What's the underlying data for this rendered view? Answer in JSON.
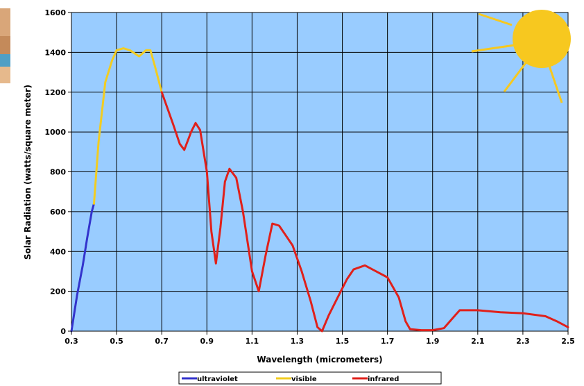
{
  "chart_data": {
    "type": "line",
    "title": "",
    "xlabel": "Wavelength (micrometers)",
    "ylabel": "Solar Radiation (watts/square meter)",
    "xlim": [
      0.3,
      2.5
    ],
    "ylim": [
      0,
      1600
    ],
    "x_ticks": [
      "0.3",
      "0.5",
      "0.7",
      "0.9",
      "1.1",
      "1.3",
      "1.5",
      "1.7",
      "1.9",
      "2.1",
      "2.3",
      "2.5"
    ],
    "y_ticks": [
      "0",
      "200",
      "400",
      "600",
      "800",
      "1000",
      "1200",
      "1400",
      "1600"
    ],
    "grid": true,
    "legend_position": "bottom-center",
    "plot_background": "#99ccff",
    "series": [
      {
        "name": "ultraviolet",
        "color": "#3333cc",
        "points": [
          [
            0.3,
            0
          ],
          [
            0.325,
            180
          ],
          [
            0.35,
            330
          ],
          [
            0.37,
            470
          ],
          [
            0.39,
            600
          ],
          [
            0.4,
            640
          ]
        ]
      },
      {
        "name": "visible",
        "color": "#f2cc21",
        "points": [
          [
            0.4,
            640
          ],
          [
            0.42,
            950
          ],
          [
            0.45,
            1250
          ],
          [
            0.48,
            1360
          ],
          [
            0.5,
            1410
          ],
          [
            0.53,
            1420
          ],
          [
            0.56,
            1410
          ],
          [
            0.6,
            1380
          ],
          [
            0.63,
            1410
          ],
          [
            0.65,
            1410
          ],
          [
            0.67,
            1330
          ],
          [
            0.7,
            1200
          ]
        ]
      },
      {
        "name": "infrared",
        "color": "#e0201b",
        "points": [
          [
            0.7,
            1200
          ],
          [
            0.75,
            1040
          ],
          [
            0.78,
            940
          ],
          [
            0.8,
            910
          ],
          [
            0.83,
            1000
          ],
          [
            0.85,
            1045
          ],
          [
            0.87,
            1010
          ],
          [
            0.9,
            800
          ],
          [
            0.92,
            500
          ],
          [
            0.94,
            340
          ],
          [
            0.96,
            520
          ],
          [
            0.98,
            750
          ],
          [
            1.0,
            815
          ],
          [
            1.03,
            770
          ],
          [
            1.06,
            600
          ],
          [
            1.1,
            300
          ],
          [
            1.13,
            200
          ],
          [
            1.16,
            380
          ],
          [
            1.19,
            540
          ],
          [
            1.22,
            530
          ],
          [
            1.25,
            480
          ],
          [
            1.28,
            430
          ],
          [
            1.32,
            300
          ],
          [
            1.36,
            150
          ],
          [
            1.39,
            20
          ],
          [
            1.41,
            0
          ],
          [
            1.44,
            80
          ],
          [
            1.48,
            170
          ],
          [
            1.52,
            260
          ],
          [
            1.55,
            310
          ],
          [
            1.6,
            330
          ],
          [
            1.65,
            300
          ],
          [
            1.7,
            270
          ],
          [
            1.75,
            170
          ],
          [
            1.78,
            50
          ],
          [
            1.8,
            10
          ],
          [
            1.85,
            5
          ],
          [
            1.9,
            5
          ],
          [
            1.95,
            15
          ],
          [
            2.0,
            80
          ],
          [
            2.02,
            105
          ],
          [
            2.1,
            105
          ],
          [
            2.2,
            95
          ],
          [
            2.3,
            90
          ],
          [
            2.4,
            75
          ],
          [
            2.45,
            50
          ],
          [
            2.5,
            20
          ]
        ]
      }
    ]
  },
  "decoration": {
    "sun_icon": "sun-icon",
    "sun_color": "#f7c81f"
  }
}
